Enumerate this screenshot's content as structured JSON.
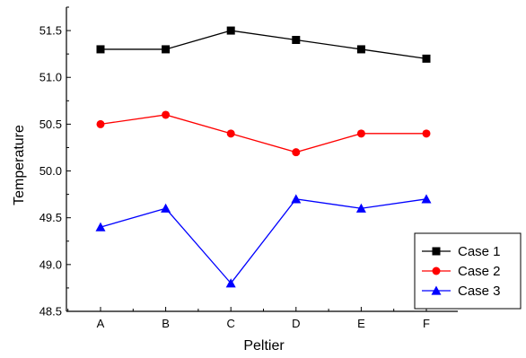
{
  "chart_data": {
    "type": "line",
    "title": "",
    "xlabel": "Peltier",
    "ylabel": "Temperature",
    "categories": [
      "A",
      "B",
      "C",
      "D",
      "E",
      "F"
    ],
    "ylim": [
      48.5,
      51.75
    ],
    "yticks": [
      "48.5",
      "49.0",
      "49.5",
      "50.0",
      "50.5",
      "51.0",
      "51.5"
    ],
    "grid": false,
    "legend_position": "bottom-right",
    "series": [
      {
        "name": "Case 1",
        "values": [
          51.3,
          51.3,
          51.5,
          51.4,
          51.3,
          51.2
        ],
        "color": "#000000",
        "marker": "square"
      },
      {
        "name": "Case 2",
        "values": [
          50.5,
          50.6,
          50.4,
          50.2,
          50.4,
          50.4
        ],
        "color": "#ff0000",
        "marker": "circle"
      },
      {
        "name": "Case 3",
        "values": [
          49.4,
          49.6,
          48.8,
          49.7,
          49.6,
          49.7
        ],
        "color": "#0000ff",
        "marker": "triangle"
      }
    ]
  }
}
